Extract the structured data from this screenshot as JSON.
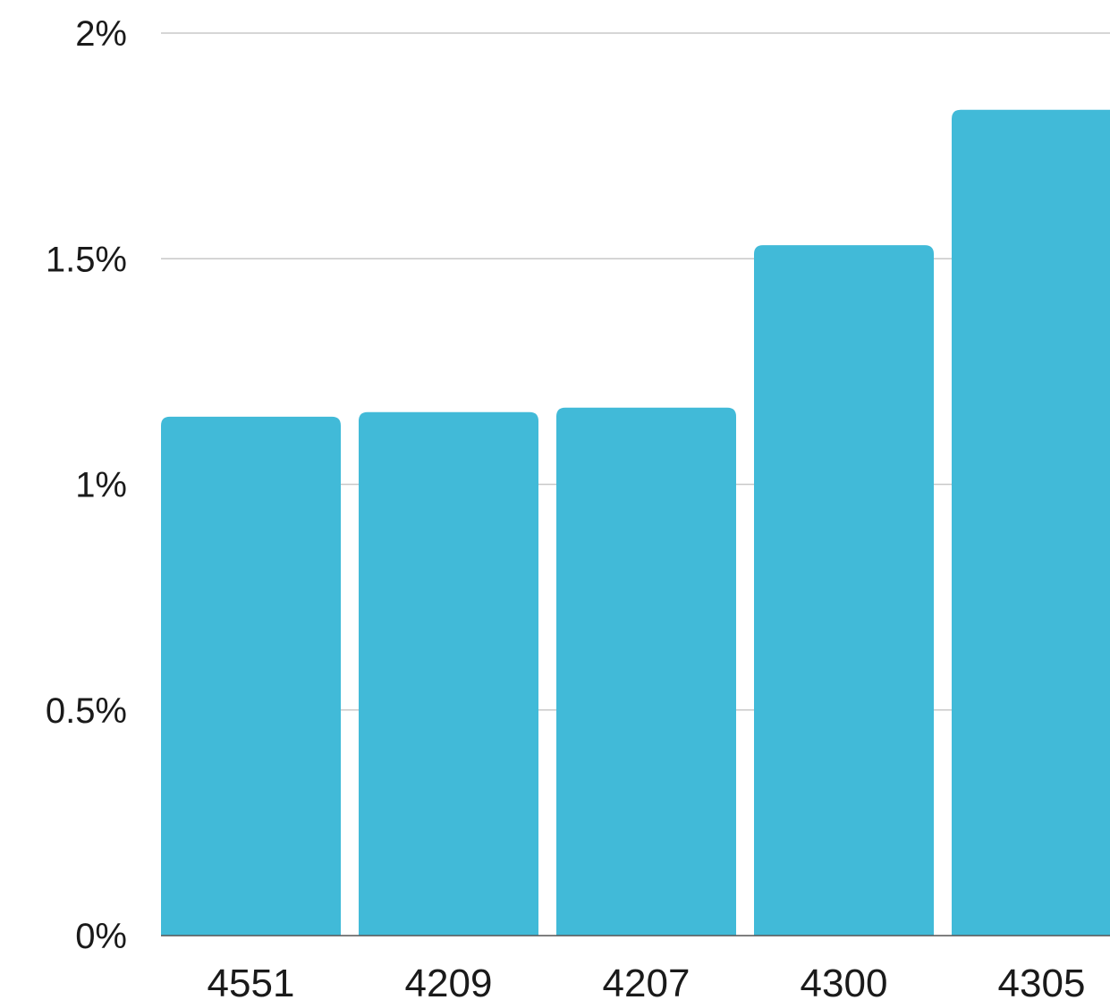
{
  "chart_data": {
    "type": "bar",
    "categories": [
      "4551",
      "4209",
      "4207",
      "4300",
      "4305"
    ],
    "values": [
      1.15,
      1.16,
      1.17,
      1.53,
      1.83
    ],
    "ylim": [
      0,
      2
    ],
    "yticks": [
      0,
      0.5,
      1,
      1.5,
      2
    ],
    "ytick_labels": [
      "0%",
      "0.5%",
      "1%",
      "1.5%",
      "2%"
    ],
    "title": "",
    "xlabel": "",
    "ylabel": "",
    "grid": true,
    "legend": "none",
    "colors": {
      "bar": "#41bad8",
      "grid": "#c8c8c8",
      "text": "#1a1a1a"
    }
  }
}
